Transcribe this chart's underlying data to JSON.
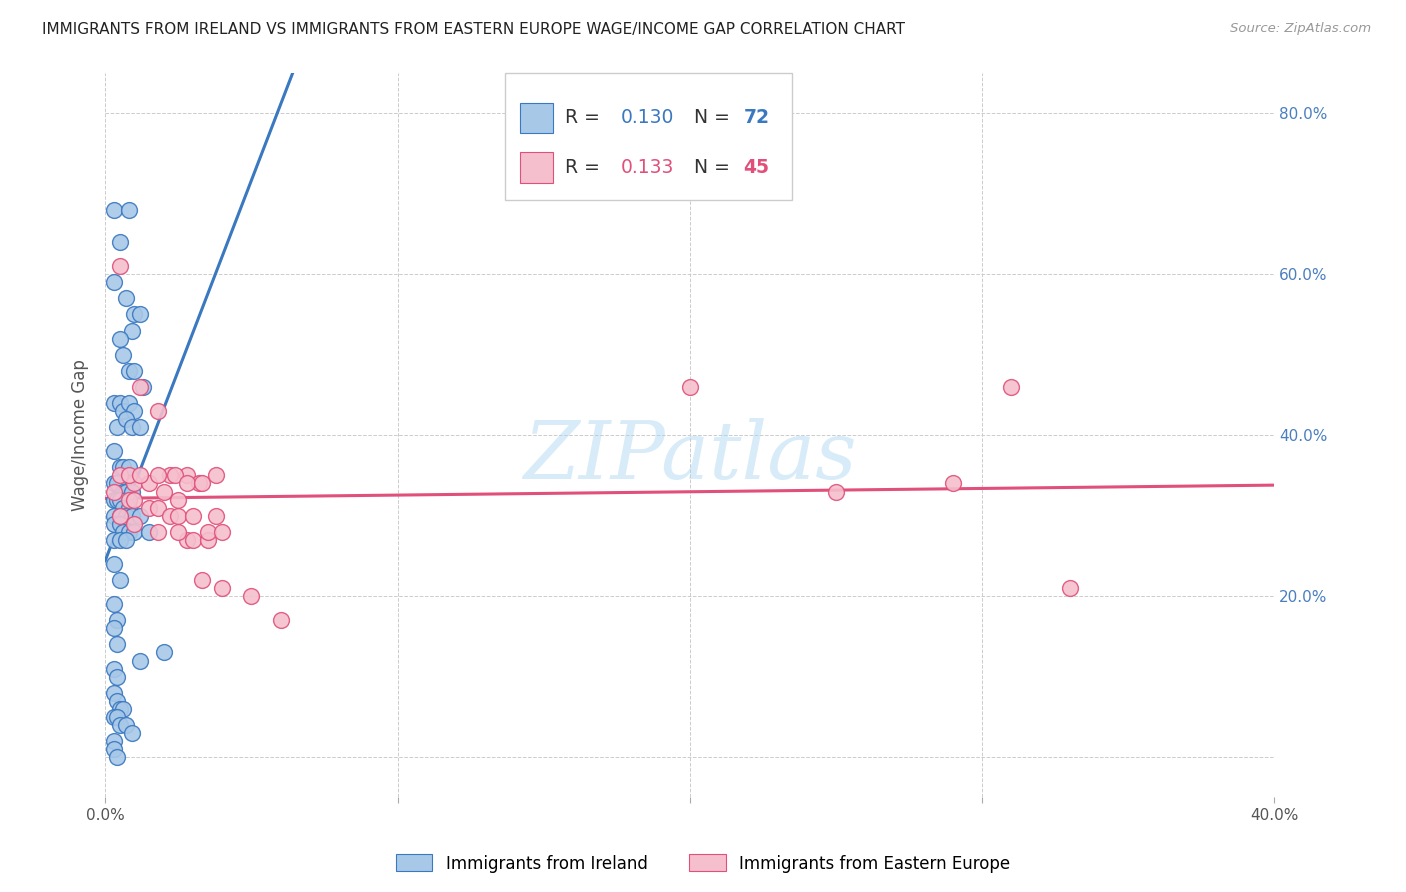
{
  "title": "IMMIGRANTS FROM IRELAND VS IMMIGRANTS FROM EASTERN EUROPE WAGE/INCOME GAP CORRELATION CHART",
  "source": "Source: ZipAtlas.com",
  "ylabel": "Wage/Income Gap",
  "legend_label1": "Immigrants from Ireland",
  "legend_label2": "Immigrants from Eastern Europe",
  "R1": 0.13,
  "N1": 72,
  "R2": 0.133,
  "N2": 45,
  "color_blue": "#a8c8e8",
  "color_blue_line": "#3a78c0",
  "color_pink": "#f5bfce",
  "color_pink_line": "#e0507a",
  "color_dashed": "#a8c8e8",
  "watermark": "ZIPatlas",
  "xlim": [
    0.0,
    40.0
  ],
  "ylim": [
    -5.0,
    85.0
  ],
  "blue_x": [
    0.3,
    0.5,
    0.8,
    1.0,
    1.2,
    0.3,
    0.7,
    0.9,
    0.5,
    0.6,
    0.8,
    1.0,
    1.3,
    0.3,
    0.5,
    0.6,
    0.8,
    1.0,
    0.4,
    0.7,
    0.9,
    1.2,
    0.3,
    0.5,
    0.6,
    0.8,
    0.3,
    0.4,
    0.6,
    0.7,
    0.9,
    0.3,
    0.4,
    0.5,
    0.6,
    0.8,
    0.3,
    0.5,
    0.7,
    0.9,
    1.2,
    0.3,
    0.5,
    0.6,
    0.8,
    1.0,
    1.5,
    0.3,
    0.5,
    0.7,
    0.3,
    0.5,
    0.3,
    0.4,
    0.3,
    0.4,
    2.0,
    1.2,
    0.3,
    0.4,
    0.3,
    0.4,
    0.5,
    0.6,
    0.3,
    0.4,
    0.5,
    0.7,
    0.9,
    0.3,
    0.3,
    0.4
  ],
  "blue_y": [
    68,
    64,
    68,
    55,
    55,
    59,
    57,
    53,
    52,
    50,
    48,
    48,
    46,
    44,
    44,
    43,
    44,
    43,
    41,
    42,
    41,
    41,
    38,
    36,
    36,
    36,
    34,
    34,
    33,
    33,
    33,
    32,
    32,
    32,
    31,
    31,
    30,
    30,
    30,
    30,
    30,
    29,
    29,
    28,
    28,
    28,
    28,
    27,
    27,
    27,
    24,
    22,
    19,
    17,
    16,
    14,
    13,
    12,
    11,
    10,
    8,
    7,
    6,
    6,
    5,
    5,
    4,
    4,
    3,
    2,
    1,
    0
  ],
  "pink_x": [
    0.3,
    0.8,
    1.0,
    1.5,
    1.8,
    2.2,
    2.5,
    2.8,
    3.0,
    3.5,
    0.5,
    1.2,
    1.8,
    2.2,
    2.8,
    3.2,
    3.8,
    0.5,
    1.0,
    1.5,
    2.0,
    2.5,
    3.0,
    3.5,
    4.0,
    0.8,
    1.2,
    1.8,
    2.4,
    2.8,
    3.3,
    3.8,
    0.5,
    1.0,
    1.8,
    2.5,
    3.3,
    4.0,
    5.0,
    6.0,
    20.0,
    25.0,
    29.0,
    31.0,
    33.0
  ],
  "pink_y": [
    33,
    32,
    32,
    31,
    31,
    30,
    30,
    27,
    27,
    27,
    61,
    46,
    43,
    35,
    35,
    34,
    30,
    35,
    34,
    34,
    33,
    32,
    30,
    28,
    28,
    35,
    35,
    35,
    35,
    34,
    34,
    35,
    30,
    29,
    28,
    28,
    22,
    21,
    20,
    17,
    46,
    33,
    34,
    46,
    21
  ],
  "blue_line_x0": 0.0,
  "blue_line_x_solid_end": 15.0,
  "blue_line_x1": 40.0,
  "pink_line_x0": 0.0,
  "pink_line_x1": 40.0
}
